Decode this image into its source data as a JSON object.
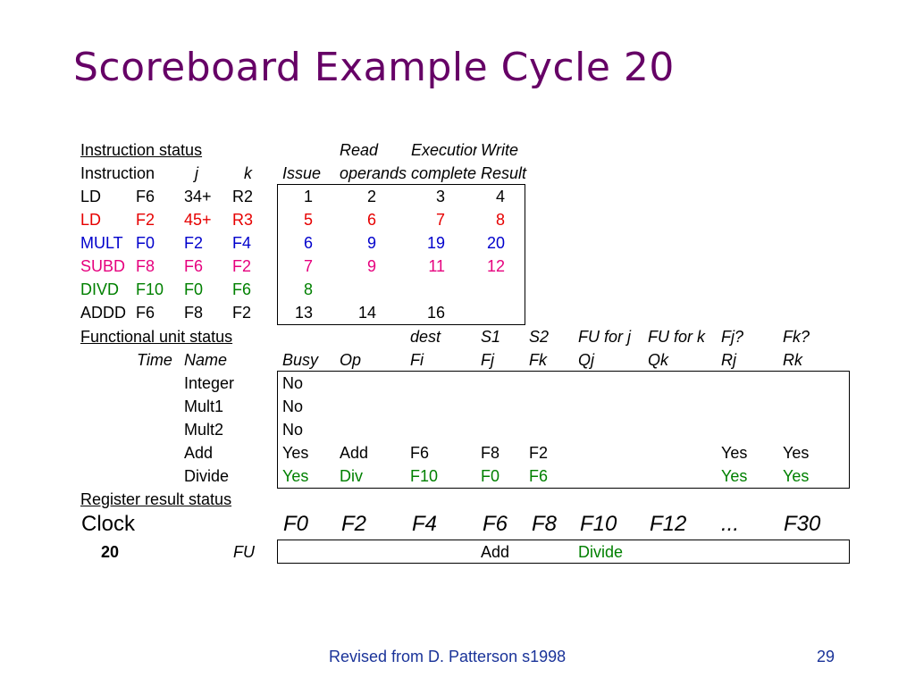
{
  "slide": {
    "title": "Scoreboard Example Cycle 20",
    "footer": "Revised from D. Patterson s1998",
    "page_number": "29"
  },
  "instruction_status": {
    "section_title": "Instruction status",
    "header_top": {
      "read": "Read",
      "exec": "Execution",
      "write": "Write"
    },
    "header": {
      "instruction": "Instruction",
      "j": "j",
      "k": "k",
      "issue": "Issue",
      "read": "operands",
      "exec": "complete",
      "write": "Result"
    },
    "rows": [
      {
        "op": "LD",
        "dest": "F6",
        "j": "34+",
        "k": "R2",
        "issue": "1",
        "read": "2",
        "exec": "3",
        "write": "4"
      },
      {
        "op": "LD",
        "dest": "F2",
        "j": "45+",
        "k": "R3",
        "issue": "5",
        "read": "6",
        "exec": "7",
        "write": "8"
      },
      {
        "op": "MULT",
        "dest": "F0",
        "j": "F2",
        "k": "F4",
        "issue": "6",
        "read": "9",
        "exec": "19",
        "write": "20"
      },
      {
        "op": "SUBD",
        "dest": "F8",
        "j": "F6",
        "k": "F2",
        "issue": "7",
        "read": "9",
        "exec": "11",
        "write": "12"
      },
      {
        "op": "DIVD",
        "dest": "F10",
        "j": "F0",
        "k": "F6",
        "issue": "8",
        "read": "",
        "exec": "",
        "write": ""
      },
      {
        "op": "ADDD",
        "dest": "F6",
        "j": "F8",
        "k": "F2",
        "issue": "13",
        "read": "14",
        "exec": "16",
        "write": ""
      }
    ],
    "row_colors": [
      "#000000",
      "#e60000",
      "#0000cc",
      "#e6007e",
      "#008000",
      "#000000"
    ]
  },
  "functional_unit_status": {
    "section_title": "Functional unit status",
    "header_top": {
      "fi": "dest",
      "fj": "S1",
      "fk": "S2",
      "qj": "FU for j",
      "qk": "FU for k",
      "rj": "Fj?",
      "rk": "Fk?"
    },
    "header": {
      "time": "Time",
      "name": "Name",
      "busy": "Busy",
      "op": "Op",
      "fi": "Fi",
      "fj": "Fj",
      "fk": "Fk",
      "qj": "Qj",
      "qk": "Qk",
      "rj": "Rj",
      "rk": "Rk"
    },
    "rows": [
      {
        "time": "",
        "name": "Integer",
        "busy": "No",
        "op": "",
        "fi": "",
        "fj": "",
        "fk": "",
        "qj": "",
        "qk": "",
        "rj": "",
        "rk": ""
      },
      {
        "time": "",
        "name": "Mult1",
        "busy": "No",
        "op": "",
        "fi": "",
        "fj": "",
        "fk": "",
        "qj": "",
        "qk": "",
        "rj": "",
        "rk": ""
      },
      {
        "time": "",
        "name": "Mult2",
        "busy": "No",
        "op": "",
        "fi": "",
        "fj": "",
        "fk": "",
        "qj": "",
        "qk": "",
        "rj": "",
        "rk": ""
      },
      {
        "time": "",
        "name": "Add",
        "busy": "Yes",
        "op": "Add",
        "fi": "F6",
        "fj": "F8",
        "fk": "F2",
        "qj": "",
        "qk": "",
        "rj": "Yes",
        "rk": "Yes"
      },
      {
        "time": "",
        "name": "Divide",
        "busy": "Yes",
        "op": "Div",
        "fi": "F10",
        "fj": "F0",
        "fk": "F6",
        "qj": "",
        "qk": "",
        "rj": "Yes",
        "rk": "Yes"
      }
    ],
    "row_colors": [
      "#000000",
      "#000000",
      "#000000",
      "#000000",
      "#008000"
    ]
  },
  "register_result_status": {
    "section_title": "Register result status",
    "clock_label": "Clock",
    "clock_value": "20",
    "fu_label": "FU",
    "registers": [
      "F0",
      "F2",
      "F4",
      "F6",
      "F8",
      "F10",
      "F12",
      "...",
      "F30"
    ],
    "fu": [
      "",
      "",
      "",
      "Add",
      "",
      "Divide",
      "",
      "",
      ""
    ],
    "fu_colors": [
      "#000000",
      "#000000",
      "#000000",
      "#000000",
      "#000000",
      "#008000",
      "#000000",
      "#000000",
      "#000000"
    ]
  }
}
